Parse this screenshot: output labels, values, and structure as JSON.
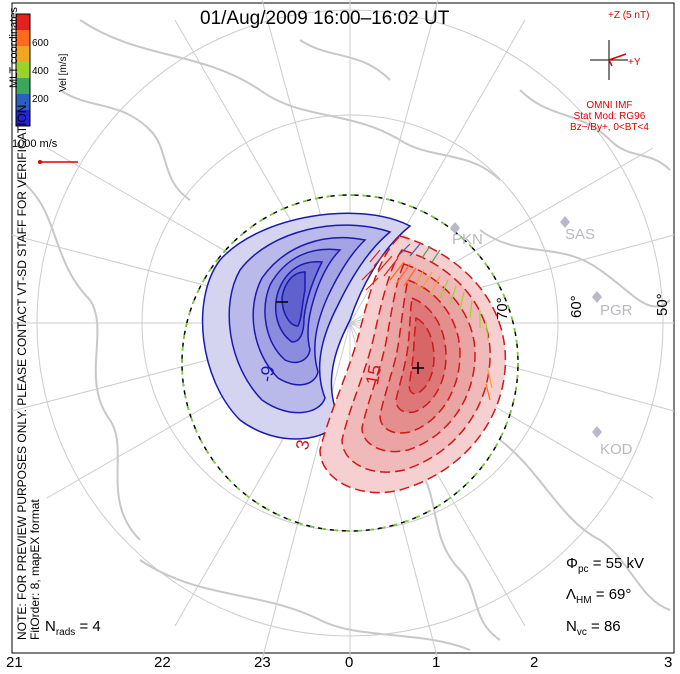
{
  "title": "01/Aug/2009  16:00–16:02  UT",
  "colorbar": {
    "title": "Vel [m/s]",
    "ticks": [
      "600",
      "400",
      "200"
    ],
    "colors": [
      "#e6201c",
      "#ff6a1a",
      "#f2a51f",
      "#9ad42a",
      "#3aa858",
      "#2d5fc2",
      "#2424d8"
    ]
  },
  "vector_scale": "1000 m/s",
  "imf": {
    "bz_label": "+Z (5 nT)",
    "by_label": "+Y",
    "source": "OMNI IMF",
    "model": "Stat Mod: RG96",
    "condition": "Bz−/By+, 0<BT<4"
  },
  "coordinates": "MLT coordinates",
  "note": "NOTE: FOR PREVIEW PURPOSES ONLY. PLEASE CONTACT VT-SD STAFF FOR VERIFICATION.",
  "fit_order": "FitOrder: 8, mapEX format",
  "stats": {
    "nrads_label": "N",
    "nrads_sub": "rads",
    "nrads_value": " = 4",
    "phi_label": "Φ",
    "phi_sub": "pc",
    "phi_value": " = 55 kV",
    "lambda_label": "Λ",
    "lambda_sub": "HM",
    "lambda_value": " = 69°",
    "nvc_label": "N",
    "nvc_sub": "vc",
    "nvc_value": " = 86"
  },
  "mlt_labels": [
    "21",
    "22",
    "23",
    "0",
    "1",
    "2",
    "3"
  ],
  "latitude_labels": [
    "50°",
    "60°",
    "70°"
  ],
  "radar_sites": [
    "PKN",
    "SAS",
    "PGR",
    "KOD"
  ],
  "contour_labels": [
    "-9",
    "15",
    "3"
  ],
  "contours": {
    "negative_color": "#1a1ab0",
    "positive_color": "#d01818",
    "negative_fill": "#c8c8ee",
    "positive_fill": "#f4c0c0"
  }
}
